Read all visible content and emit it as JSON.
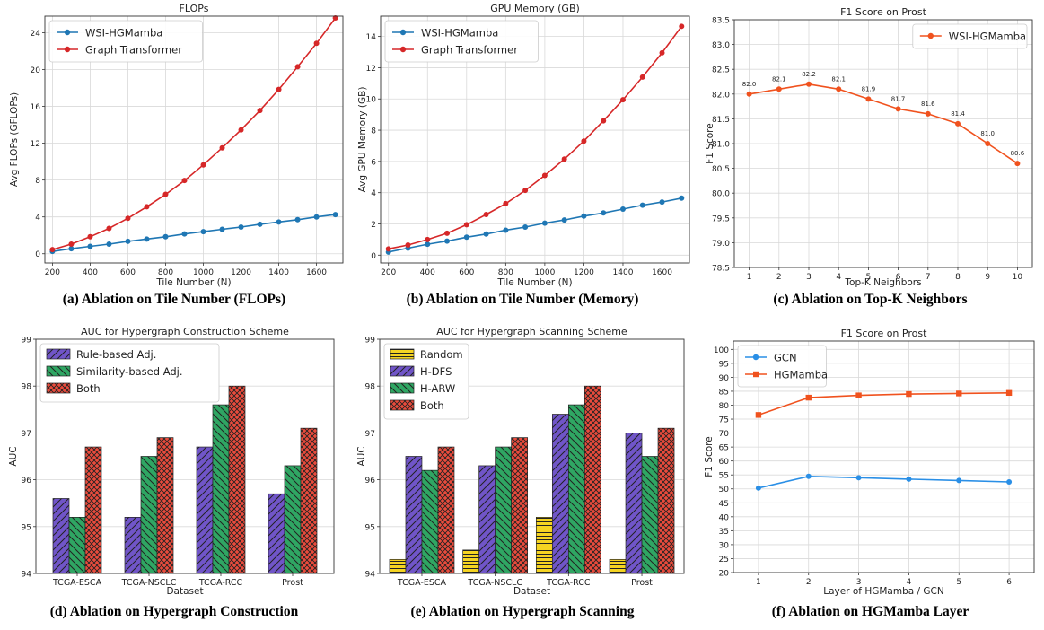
{
  "colors": {
    "blue": "#1f77b4",
    "red": "#d62728",
    "orange_red": "#f0521e",
    "gcn_blue": "#2a8fe6",
    "purple": "#7055c8",
    "green": "#2fa663",
    "crimson": "#ea4b3c",
    "yellow": "#f5d422",
    "grid": "#d9d9d9"
  },
  "panels": [
    {
      "caption": "(a) Ablation on Tile Number (FLOPs)"
    },
    {
      "caption": "(b) Ablation on Tile Number (Memory)"
    },
    {
      "caption": "(c) Ablation on Top-K Neighbors"
    },
    {
      "caption": "(d) Ablation on Hypergraph Construction"
    },
    {
      "caption": "(e) Ablation on Hypergraph Scanning"
    },
    {
      "caption": "(f) Ablation on HGMamba Layer"
    }
  ],
  "chart_data": [
    {
      "type": "line",
      "title": "FLOPs",
      "xlabel": "Tile Number (N)",
      "ylabel": "Avg FLOPs (GFLOPs)",
      "xlim": [
        160,
        1740
      ],
      "ylim": [
        -1,
        25.8
      ],
      "xticks": [
        200,
        400,
        600,
        800,
        1000,
        1200,
        1400,
        1600
      ],
      "yticks": [
        0,
        4,
        8,
        12,
        16,
        20,
        24
      ],
      "grid": true,
      "legend": "top-left",
      "x": [
        200,
        300,
        400,
        500,
        600,
        700,
        800,
        900,
        1000,
        1100,
        1200,
        1300,
        1400,
        1500,
        1600,
        1700
      ],
      "series": [
        {
          "name": "WSI-HGMamba",
          "color": "#1f77b4",
          "marker": "circle",
          "values": [
            0.25,
            0.55,
            0.8,
            1.05,
            1.35,
            1.6,
            1.85,
            2.15,
            2.4,
            2.65,
            2.9,
            3.2,
            3.45,
            3.7,
            4.0,
            4.25
          ]
        },
        {
          "name": "Graph Transformer",
          "color": "#d62728",
          "marker": "circle",
          "values": [
            0.45,
            1.05,
            1.85,
            2.75,
            3.85,
            5.1,
            6.45,
            7.95,
            9.65,
            11.5,
            13.45,
            15.55,
            17.85,
            20.3,
            22.85,
            25.6
          ]
        }
      ]
    },
    {
      "type": "line",
      "title": "GPU Memory (GB)",
      "xlabel": "Tile Number (N)",
      "ylabel": "Avg GPU Memory (GB)",
      "xlim": [
        160,
        1740
      ],
      "ylim": [
        -0.5,
        15.3
      ],
      "xticks": [
        200,
        400,
        600,
        800,
        1000,
        1200,
        1400,
        1600
      ],
      "yticks": [
        0,
        2,
        4,
        6,
        8,
        10,
        12,
        14
      ],
      "grid": true,
      "legend": "top-left",
      "x": [
        200,
        300,
        400,
        500,
        600,
        700,
        800,
        900,
        1000,
        1100,
        1200,
        1300,
        1400,
        1500,
        1600,
        1700
      ],
      "series": [
        {
          "name": "WSI-HGMamba",
          "color": "#1f77b4",
          "marker": "circle",
          "values": [
            0.2,
            0.45,
            0.7,
            0.9,
            1.15,
            1.35,
            1.6,
            1.8,
            2.05,
            2.25,
            2.5,
            2.7,
            2.95,
            3.2,
            3.4,
            3.65
          ]
        },
        {
          "name": "Graph Transformer",
          "color": "#d62728",
          "marker": "circle",
          "values": [
            0.4,
            0.65,
            1.0,
            1.4,
            1.95,
            2.6,
            3.3,
            4.15,
            5.1,
            6.15,
            7.3,
            8.6,
            9.95,
            11.4,
            12.95,
            14.65
          ]
        }
      ]
    },
    {
      "type": "line",
      "title": "F1 Score on Prost",
      "xlabel": "Top-K Neighbors",
      "ylabel": "F1 Score",
      "xlim": [
        0.5,
        10.5
      ],
      "ylim": [
        78.5,
        83.5
      ],
      "xticks": [
        1,
        2,
        3,
        4,
        5,
        6,
        7,
        8,
        9,
        10
      ],
      "yticks": [
        78.5,
        79.0,
        79.5,
        80.0,
        80.5,
        81.0,
        81.5,
        82.0,
        82.5,
        83.0,
        83.5
      ],
      "ytick_labels": [
        "78.5",
        "79.0",
        "79.5",
        "80.0",
        "80.5",
        "81.0",
        "81.5",
        "82.0",
        "82.5",
        "83.0",
        "83.5"
      ],
      "grid": true,
      "legend": "top-right",
      "x": [
        1,
        2,
        3,
        4,
        5,
        6,
        7,
        8,
        9,
        10
      ],
      "series": [
        {
          "name": "WSI-HGMamba",
          "color": "#f0521e",
          "marker": "circle",
          "values": [
            82.0,
            82.1,
            82.2,
            82.1,
            81.9,
            81.7,
            81.6,
            81.4,
            81.0,
            80.6
          ],
          "data_labels": [
            "82.0",
            "82.1",
            "82.2",
            "82.1",
            "81.9",
            "81.7",
            "81.6",
            "81.4",
            "81.0",
            "80.6"
          ]
        }
      ]
    },
    {
      "type": "bar",
      "title": "AUC for Hypergraph Construction Scheme",
      "xlabel": "Dataset",
      "ylabel": "AUC",
      "ylim": [
        94,
        99
      ],
      "yticks": [
        94,
        95,
        96,
        97,
        98,
        99
      ],
      "grid": true,
      "legend": "top-left",
      "categories": [
        "TCGA-ESCA",
        "TCGA-NSCLC",
        "TCGA-RCC",
        "Prost"
      ],
      "series": [
        {
          "name": "Rule-based Adj.",
          "color": "#7055c8",
          "hatch": "fwd",
          "values": [
            95.6,
            95.2,
            96.7,
            95.7
          ]
        },
        {
          "name": "Similarity-based Adj.",
          "color": "#2fa663",
          "hatch": "back",
          "values": [
            95.2,
            96.5,
            97.6,
            96.3
          ]
        },
        {
          "name": "Both",
          "color": "#ea4b3c",
          "hatch": "cross",
          "values": [
            96.7,
            96.9,
            98.0,
            97.1
          ]
        }
      ]
    },
    {
      "type": "bar",
      "title": "AUC for Hypergraph Scanning Scheme",
      "xlabel": "Dataset",
      "ylabel": "AUC",
      "ylim": [
        94,
        99
      ],
      "yticks": [
        94,
        95,
        96,
        97,
        98,
        99
      ],
      "grid": true,
      "legend": "top-left",
      "categories": [
        "TCGA-ESCA",
        "TCGA-NSCLC",
        "TCGA-RCC",
        "Prost"
      ],
      "series": [
        {
          "name": "Random",
          "color": "#f5d422",
          "hatch": "horiz",
          "values": [
            94.3,
            94.5,
            95.2,
            94.3
          ]
        },
        {
          "name": "H-DFS",
          "color": "#7055c8",
          "hatch": "fwd",
          "values": [
            96.5,
            96.3,
            97.4,
            97.0
          ]
        },
        {
          "name": "H-ARW",
          "color": "#2fa663",
          "hatch": "back",
          "values": [
            96.2,
            96.7,
            97.6,
            96.5
          ]
        },
        {
          "name": "Both",
          "color": "#ea4b3c",
          "hatch": "cross",
          "values": [
            96.7,
            96.9,
            98.0,
            97.1
          ]
        }
      ]
    },
    {
      "type": "line",
      "title": "F1 Score on Prost",
      "xlabel": "Layer of HGMamba / GCN",
      "ylabel": "F1 Score",
      "xlim": [
        0.5,
        6.5
      ],
      "ylim": [
        20,
        103
      ],
      "xticks": [
        1,
        2,
        3,
        4,
        5,
        6
      ],
      "yticks": [
        20,
        25,
        30,
        35,
        40,
        45,
        50,
        55,
        60,
        65,
        70,
        75,
        80,
        85,
        90,
        95,
        100
      ],
      "grid": true,
      "legend": "top-left",
      "x": [
        1,
        2,
        3,
        4,
        5,
        6
      ],
      "series": [
        {
          "name": "GCN",
          "color": "#2a8fe6",
          "marker": "circle",
          "values": [
            50.3,
            54.5,
            54.0,
            53.5,
            53.0,
            52.5
          ]
        },
        {
          "name": "HGMamba",
          "color": "#f0521e",
          "marker": "square",
          "values": [
            76.5,
            82.7,
            83.5,
            84.0,
            84.2,
            84.4
          ]
        }
      ]
    }
  ]
}
